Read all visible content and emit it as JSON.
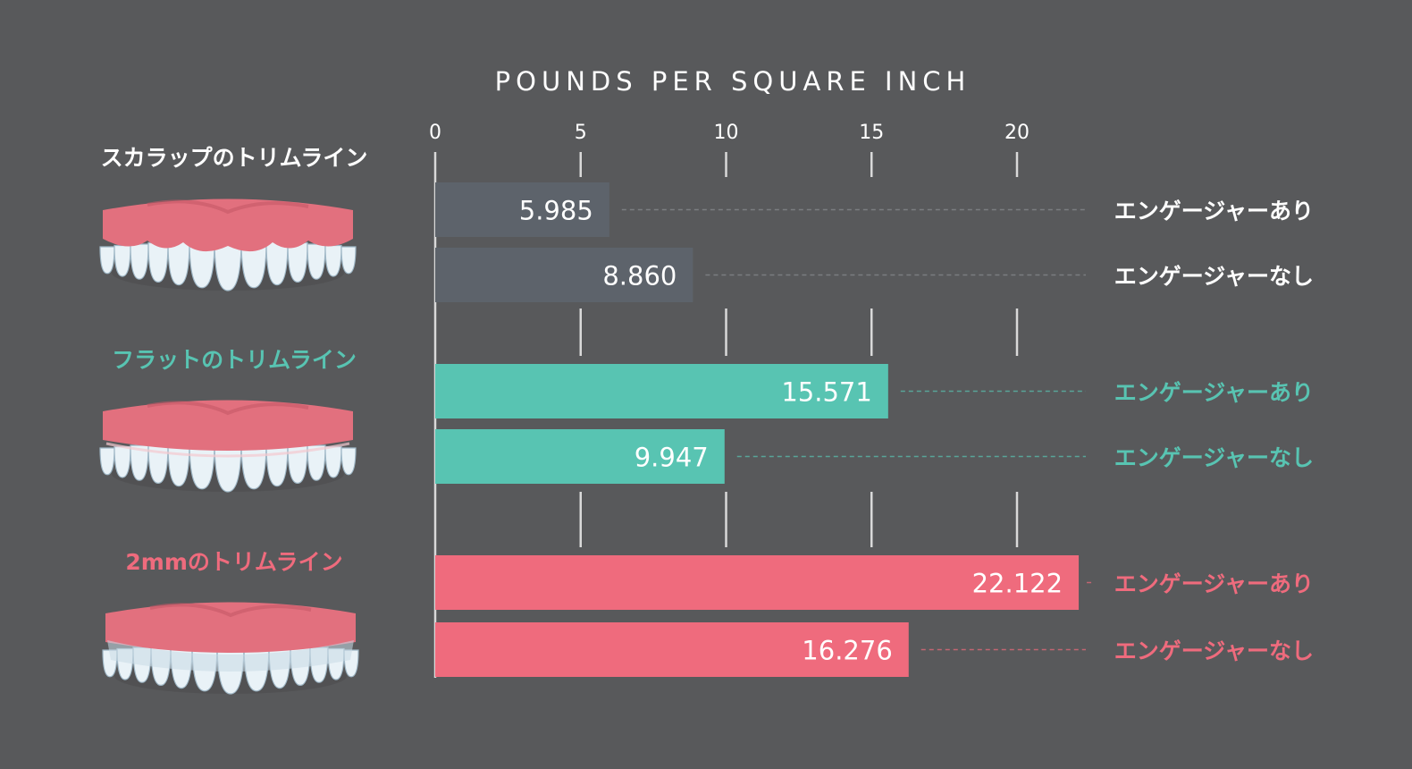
{
  "chart_data": {
    "type": "bar",
    "orientation": "horizontal",
    "x_axis_title": "POUNDS PER SQUARE INCH",
    "xlim": [
      0,
      22.5
    ],
    "x_ticks": [
      0,
      5,
      10,
      15,
      20
    ],
    "legend": "none",
    "grid": "vertical lines at ticks",
    "groups": [
      {
        "name": "スカラップのトリムライン",
        "color": "#ffffff",
        "bar_color": "#5d636b",
        "bars": [
          {
            "category": "エンゲージャーあり",
            "value": 5.985,
            "label": "5.985"
          },
          {
            "category": "エンゲージャーなし",
            "value": 8.86,
            "label": "8.860"
          }
        ]
      },
      {
        "name": "フラットのトリムライン",
        "color": "#58c4b2",
        "bar_color": "#58c4b2",
        "bars": [
          {
            "category": "エンゲージャーあり",
            "value": 15.571,
            "label": "15.571"
          },
          {
            "category": "エンゲージャーなし",
            "value": 9.947,
            "label": "9.947"
          }
        ]
      },
      {
        "name": "2mmのトリムライン",
        "color": "#ef6b7d",
        "bar_color": "#ef6b7d",
        "bars": [
          {
            "category": "エンゲージャーあり",
            "value": 22.122,
            "label": "22.122"
          },
          {
            "category": "エンゲージャーなし",
            "value": 16.276,
            "label": "16.276"
          }
        ]
      }
    ]
  },
  "colors": {
    "background": "#58595b",
    "gridline": "#d9d9d9",
    "axis_text": "#ffffff",
    "bar_label_text": "#ffffff",
    "gum": "#e2707e",
    "tooth": "#e9f2f7"
  },
  "icons": [
    "denture-scallop-icon",
    "denture-flat-icon",
    "denture-2mm-icon"
  ]
}
